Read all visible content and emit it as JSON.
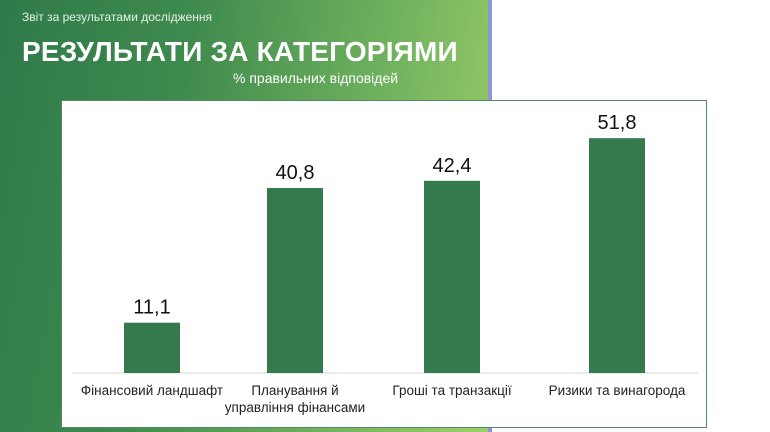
{
  "header": {
    "subtitle": "Звіт за результатами дослідження",
    "title": "РЕЗУЛЬТАТИ ЗА КАТЕГОРІЯМИ"
  },
  "colors": {
    "bar": "#357a4d",
    "gradient_start": "#2f7a49",
    "gradient_end": "#9fcf6c"
  },
  "chart_data": {
    "type": "bar",
    "title": "",
    "unit_label": "% правильних відповідей",
    "categories": [
      [
        "Фінансовий ландшафт"
      ],
      [
        "Планування й",
        "управління фінансами"
      ],
      [
        "Гроші та транзакції"
      ],
      [
        "Ризики та винагорода"
      ]
    ],
    "values": [
      11.1,
      40.8,
      42.4,
      51.8
    ],
    "value_labels": [
      "11,1",
      "40,8",
      "42,4",
      "51,8"
    ],
    "ylim": [
      0,
      60
    ],
    "grid": false,
    "legend": "none"
  }
}
